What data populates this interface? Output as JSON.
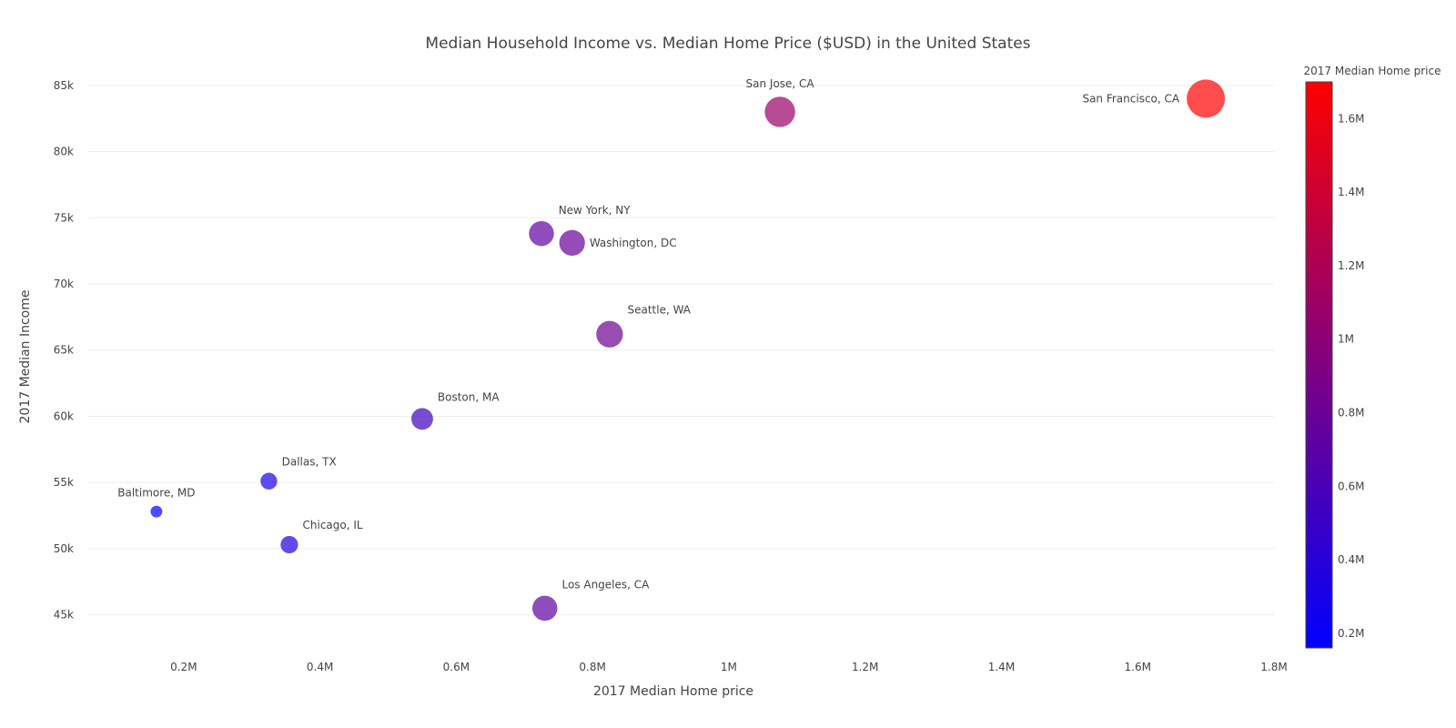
{
  "chart_data": {
    "type": "scatter",
    "title": "Median Household Income vs. Median Home Price ($USD) in the United States",
    "xlabel": "2017 Median Home price",
    "ylabel": "2017 Median Income",
    "xlim": [
      60000,
      1800000
    ],
    "ylim": [
      42500,
      86500
    ],
    "x_ticks": [
      200000,
      400000,
      600000,
      800000,
      1000000,
      1200000,
      1400000,
      1600000,
      1800000
    ],
    "x_tick_labels": [
      "0.2M",
      "0.4M",
      "0.6M",
      "0.8M",
      "1M",
      "1.2M",
      "1.4M",
      "1.6M",
      "1.8M"
    ],
    "y_ticks": [
      45000,
      50000,
      55000,
      60000,
      65000,
      70000,
      75000,
      80000,
      85000
    ],
    "y_tick_labels": [
      "45k",
      "50k",
      "55k",
      "60k",
      "65k",
      "70k",
      "75k",
      "80k",
      "85k"
    ],
    "grid": "horizontal",
    "marker_size_encodes": "2017 Median Home price",
    "colorbar": {
      "title": "2017 Median Home price",
      "range": [
        160000,
        1700000
      ],
      "ticks": [
        200000,
        400000,
        600000,
        800000,
        1000000,
        1200000,
        1400000,
        1600000
      ],
      "tick_labels": [
        "0.2M",
        "0.4M",
        "0.6M",
        "0.8M",
        "1M",
        "1.2M",
        "1.4M",
        "1.6M"
      ],
      "colors": [
        "#0000ff",
        "#ff0000"
      ],
      "position": "right"
    },
    "points": [
      {
        "label": "San Francisco, CA",
        "x": 1700000,
        "y": 84000,
        "label_pos": "left"
      },
      {
        "label": "San Jose, CA",
        "x": 1075000,
        "y": 83000,
        "label_pos": "top"
      },
      {
        "label": "New York, NY",
        "x": 725000,
        "y": 73800,
        "label_pos": "top-right"
      },
      {
        "label": "Washington, DC",
        "x": 770000,
        "y": 73100,
        "label_pos": "right"
      },
      {
        "label": "Seattle, WA",
        "x": 825000,
        "y": 66200,
        "label_pos": "top-right"
      },
      {
        "label": "Boston, MA",
        "x": 550000,
        "y": 59800,
        "label_pos": "top-right"
      },
      {
        "label": "Dallas, TX",
        "x": 325000,
        "y": 55100,
        "label_pos": "top-right"
      },
      {
        "label": "Baltimore, MD",
        "x": 160000,
        "y": 52800,
        "label_pos": "top"
      },
      {
        "label": "Chicago, IL",
        "x": 355000,
        "y": 50300,
        "label_pos": "top-right"
      },
      {
        "label": "Los Angeles, CA",
        "x": 730000,
        "y": 45500,
        "label_pos": "top-right"
      }
    ]
  }
}
